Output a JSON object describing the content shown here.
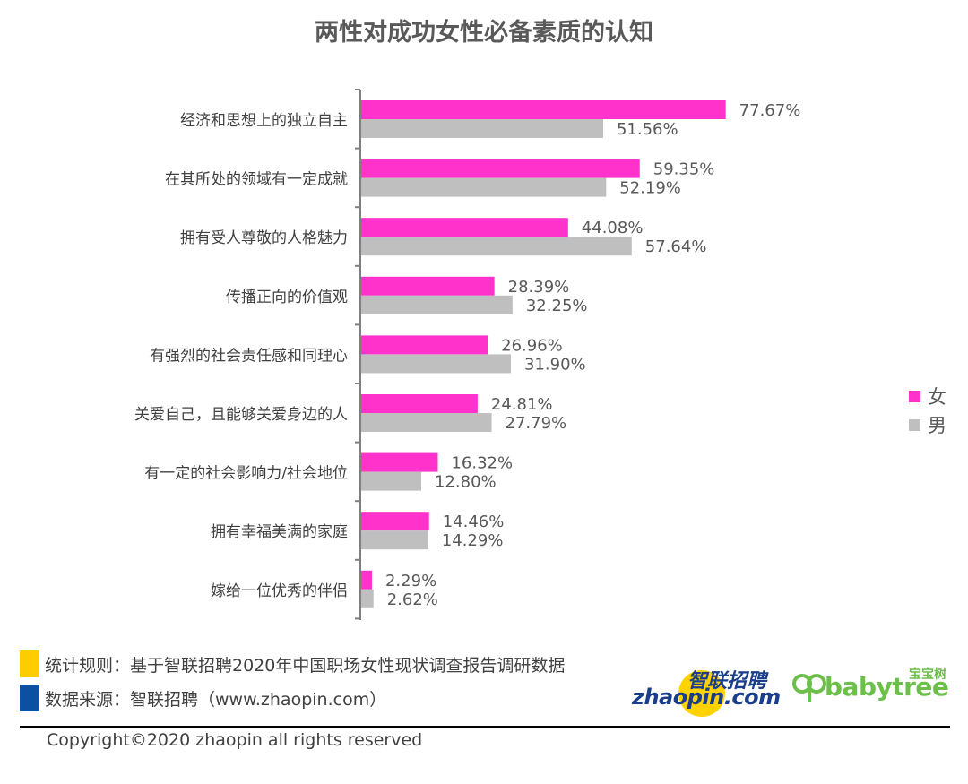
{
  "chart_data": {
    "type": "bar",
    "orientation": "horizontal",
    "title": "两性对成功女性必备素质的认知",
    "categories": [
      "经济和思想上的独立自主",
      "在其所处的领域有一定成就",
      "拥有受人尊敬的人格魅力",
      "传播正向的价值观",
      "有强烈的社会责任感和同理心",
      "关爱自己，且能够关爱身边的人",
      "有一定的社会影响力/社会地位",
      "拥有幸福美满的家庭",
      "嫁给一位优秀的伴侣"
    ],
    "series": [
      {
        "name": "女",
        "color": "#ff33cc",
        "values": [
          77.67,
          59.35,
          44.08,
          28.39,
          26.96,
          24.81,
          16.32,
          14.46,
          2.29
        ],
        "labels": [
          "77.67%",
          "59.35%",
          "44.08%",
          "28.39%",
          "26.96%",
          "24.81%",
          "16.32%",
          "14.46%",
          "2.29%"
        ]
      },
      {
        "name": "男",
        "color": "#bfbfbf",
        "values": [
          51.56,
          52.19,
          57.64,
          32.25,
          31.9,
          27.79,
          12.8,
          14.29,
          2.62
        ],
        "labels": [
          "51.56%",
          "52.19%",
          "57.64%",
          "32.25%",
          "31.90%",
          "27.79%",
          "12.80%",
          "14.29%",
          "2.62%"
        ]
      }
    ],
    "xlim": [
      0,
      100
    ],
    "grid": false,
    "legend_position": "right"
  },
  "legend": [
    {
      "label": "女",
      "color": "#ff33cc"
    },
    {
      "label": "男",
      "color": "#bfbfbf"
    }
  ],
  "footer": {
    "rule_text": "统计规则：基于智联招聘2020年中国职场女性现状调查报告调研数据",
    "rule_color": "#ffcc00",
    "source_text": "数据来源：智联招聘（www.zhaopin.com）",
    "source_color": "#0d4fa3",
    "copyright": "Copyright©2020 zhaopin all rights reserved"
  },
  "logos": {
    "zhaopin_cn": "智联招聘",
    "zhaopin_en": "zhaopin.com",
    "babytree_cn": "宝宝树",
    "babytree_en": "babytree"
  }
}
